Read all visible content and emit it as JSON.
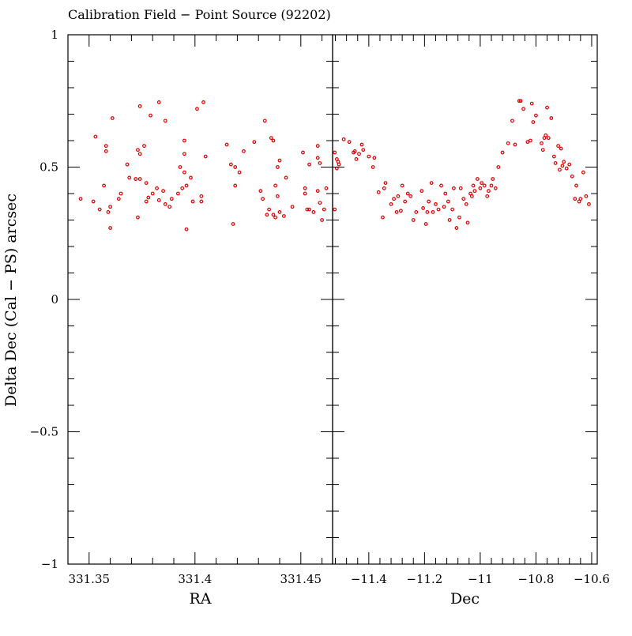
{
  "chart_data": {
    "type": "scatter",
    "title": "Calibration Field − Point Source (92202)",
    "ylabel": "Delta Dec (Cal − PS) arcsec",
    "ylim": [
      -1,
      1
    ],
    "y_ticks": [
      1,
      0.5,
      0,
      -0.5,
      -1
    ],
    "y_tick_labels": [
      "1",
      "0.5",
      "0",
      "−0.5",
      "−1"
    ],
    "marker_color": "#e00000",
    "panels": [
      {
        "xlabel": "RA",
        "xlim": [
          331.34,
          331.465
        ],
        "x_ticks": [
          331.35,
          331.4,
          331.45
        ],
        "x_tick_labels": [
          "331.35",
          "331.4",
          "331.45"
        ],
        "points": [
          [
            331.346,
            0.38
          ],
          [
            331.352,
            0.37
          ],
          [
            331.353,
            0.615
          ],
          [
            331.355,
            0.34
          ],
          [
            331.357,
            0.43
          ],
          [
            331.358,
            0.58
          ],
          [
            331.358,
            0.56
          ],
          [
            331.359,
            0.33
          ],
          [
            331.36,
            0.35
          ],
          [
            331.36,
            0.27
          ],
          [
            331.361,
            0.685
          ],
          [
            331.364,
            0.38
          ],
          [
            331.365,
            0.4
          ],
          [
            331.368,
            0.51
          ],
          [
            331.369,
            0.46
          ],
          [
            331.372,
            0.455
          ],
          [
            331.373,
            0.565
          ],
          [
            331.373,
            0.31
          ],
          [
            331.374,
            0.55
          ],
          [
            331.374,
            0.73
          ],
          [
            331.374,
            0.455
          ],
          [
            331.376,
            0.58
          ],
          [
            331.377,
            0.44
          ],
          [
            331.377,
            0.37
          ],
          [
            331.378,
            0.385
          ],
          [
            331.379,
            0.695
          ],
          [
            331.38,
            0.4
          ],
          [
            331.382,
            0.42
          ],
          [
            331.383,
            0.745
          ],
          [
            331.383,
            0.375
          ],
          [
            331.385,
            0.41
          ],
          [
            331.386,
            0.675
          ],
          [
            331.386,
            0.36
          ],
          [
            331.388,
            0.35
          ],
          [
            331.389,
            0.38
          ],
          [
            331.392,
            0.4
          ],
          [
            331.393,
            0.5
          ],
          [
            331.394,
            0.42
          ],
          [
            331.395,
            0.6
          ],
          [
            331.395,
            0.55
          ],
          [
            331.395,
            0.48
          ],
          [
            331.396,
            0.43
          ],
          [
            331.396,
            0.265
          ],
          [
            331.398,
            0.46
          ],
          [
            331.399,
            0.37
          ],
          [
            331.401,
            0.72
          ],
          [
            331.403,
            0.39
          ],
          [
            331.403,
            0.37
          ],
          [
            331.404,
            0.745
          ],
          [
            331.405,
            0.54
          ],
          [
            331.415,
            0.585
          ],
          [
            331.417,
            0.51
          ],
          [
            331.418,
            0.285
          ],
          [
            331.419,
            0.43
          ],
          [
            331.419,
            0.5
          ],
          [
            331.421,
            0.48
          ],
          [
            331.423,
            0.56
          ],
          [
            331.428,
            0.595
          ],
          [
            331.431,
            0.41
          ],
          [
            331.432,
            0.38
          ],
          [
            331.433,
            0.675
          ],
          [
            331.434,
            0.32
          ],
          [
            331.435,
            0.34
          ],
          [
            331.436,
            0.61
          ],
          [
            331.437,
            0.6
          ],
          [
            331.437,
            0.32
          ],
          [
            331.438,
            0.43
          ],
          [
            331.438,
            0.31
          ],
          [
            331.439,
            0.39
          ],
          [
            331.439,
            0.5
          ],
          [
            331.44,
            0.525
          ],
          [
            331.44,
            0.33
          ],
          [
            331.442,
            0.315
          ],
          [
            331.443,
            0.46
          ],
          [
            331.446,
            0.35
          ],
          [
            331.451,
            0.555
          ],
          [
            331.452,
            0.4
          ],
          [
            331.452,
            0.42
          ],
          [
            331.453,
            0.34
          ],
          [
            331.454,
            0.51
          ],
          [
            331.454,
            0.34
          ],
          [
            331.456,
            0.33
          ],
          [
            331.458,
            0.41
          ],
          [
            331.458,
            0.535
          ],
          [
            331.458,
            0.58
          ],
          [
            331.459,
            0.365
          ],
          [
            331.459,
            0.515
          ],
          [
            331.46,
            0.3
          ],
          [
            331.461,
            0.34
          ],
          [
            331.462,
            0.42
          ],
          [
            331.466,
            0.34
          ],
          [
            331.466,
            0.555
          ],
          [
            331.467,
            0.53
          ],
          [
            331.467,
            0.495
          ],
          [
            331.468,
            0.51
          ]
        ]
      },
      {
        "xlabel": "Dec",
        "xlim": [
          -11.53,
          -10.58
        ],
        "x_ticks": [
          -11.4,
          -11.2,
          -11,
          -10.8,
          -10.6
        ],
        "x_tick_labels": [
          "−11.4",
          "−11.2",
          "−11",
          "−10.8",
          "−10.6"
        ],
        "points": [
          [
            -11.51,
            0.52
          ],
          [
            -11.49,
            0.605
          ],
          [
            -11.47,
            0.595
          ],
          [
            -11.455,
            0.555
          ],
          [
            -11.45,
            0.56
          ],
          [
            -11.445,
            0.53
          ],
          [
            -11.435,
            0.55
          ],
          [
            -11.425,
            0.585
          ],
          [
            -11.42,
            0.565
          ],
          [
            -11.4,
            0.54
          ],
          [
            -11.385,
            0.5
          ],
          [
            -11.38,
            0.535
          ],
          [
            -11.365,
            0.405
          ],
          [
            -11.35,
            0.31
          ],
          [
            -11.345,
            0.42
          ],
          [
            -11.34,
            0.44
          ],
          [
            -11.32,
            0.36
          ],
          [
            -11.31,
            0.38
          ],
          [
            -11.3,
            0.33
          ],
          [
            -11.295,
            0.39
          ],
          [
            -11.285,
            0.335
          ],
          [
            -11.28,
            0.43
          ],
          [
            -11.27,
            0.37
          ],
          [
            -11.26,
            0.4
          ],
          [
            -11.25,
            0.39
          ],
          [
            -11.24,
            0.3
          ],
          [
            -11.23,
            0.33
          ],
          [
            -11.21,
            0.41
          ],
          [
            -11.205,
            0.345
          ],
          [
            -11.195,
            0.285
          ],
          [
            -11.19,
            0.33
          ],
          [
            -11.185,
            0.37
          ],
          [
            -11.175,
            0.44
          ],
          [
            -11.17,
            0.33
          ],
          [
            -11.16,
            0.36
          ],
          [
            -11.15,
            0.34
          ],
          [
            -11.14,
            0.43
          ],
          [
            -11.13,
            0.35
          ],
          [
            -11.125,
            0.4
          ],
          [
            -11.115,
            0.37
          ],
          [
            -11.11,
            0.3
          ],
          [
            -11.1,
            0.34
          ],
          [
            -11.095,
            0.42
          ],
          [
            -11.085,
            0.27
          ],
          [
            -11.075,
            0.31
          ],
          [
            -11.07,
            0.42
          ],
          [
            -11.06,
            0.38
          ],
          [
            -11.05,
            0.36
          ],
          [
            -11.045,
            0.29
          ],
          [
            -11.035,
            0.4
          ],
          [
            -11.03,
            0.39
          ],
          [
            -11.025,
            0.43
          ],
          [
            -11.02,
            0.41
          ],
          [
            -11.01,
            0.455
          ],
          [
            -11.0,
            0.42
          ],
          [
            -10.995,
            0.44
          ],
          [
            -10.985,
            0.43
          ],
          [
            -10.975,
            0.39
          ],
          [
            -10.97,
            0.41
          ],
          [
            -10.96,
            0.43
          ],
          [
            -10.955,
            0.455
          ],
          [
            -10.945,
            0.42
          ],
          [
            -10.935,
            0.5
          ],
          [
            -10.92,
            0.555
          ],
          [
            -10.9,
            0.59
          ],
          [
            -10.885,
            0.675
          ],
          [
            -10.875,
            0.585
          ],
          [
            -10.86,
            0.75
          ],
          [
            -10.855,
            0.75
          ],
          [
            -10.845,
            0.72
          ],
          [
            -10.83,
            0.595
          ],
          [
            -10.82,
            0.6
          ],
          [
            -10.815,
            0.74
          ],
          [
            -10.81,
            0.67
          ],
          [
            -10.8,
            0.695
          ],
          [
            -10.78,
            0.59
          ],
          [
            -10.775,
            0.565
          ],
          [
            -10.77,
            0.61
          ],
          [
            -10.765,
            0.62
          ],
          [
            -10.76,
            0.725
          ],
          [
            -10.755,
            0.61
          ],
          [
            -10.745,
            0.685
          ],
          [
            -10.735,
            0.54
          ],
          [
            -10.73,
            0.515
          ],
          [
            -10.72,
            0.58
          ],
          [
            -10.715,
            0.49
          ],
          [
            -10.71,
            0.57
          ],
          [
            -10.705,
            0.505
          ],
          [
            -10.7,
            0.52
          ],
          [
            -10.69,
            0.495
          ],
          [
            -10.68,
            0.51
          ],
          [
            -10.67,
            0.465
          ],
          [
            -10.66,
            0.38
          ],
          [
            -10.655,
            0.43
          ],
          [
            -10.645,
            0.37
          ],
          [
            -10.64,
            0.38
          ],
          [
            -10.63,
            0.48
          ],
          [
            -10.62,
            0.39
          ],
          [
            -10.61,
            0.36
          ]
        ]
      }
    ]
  }
}
